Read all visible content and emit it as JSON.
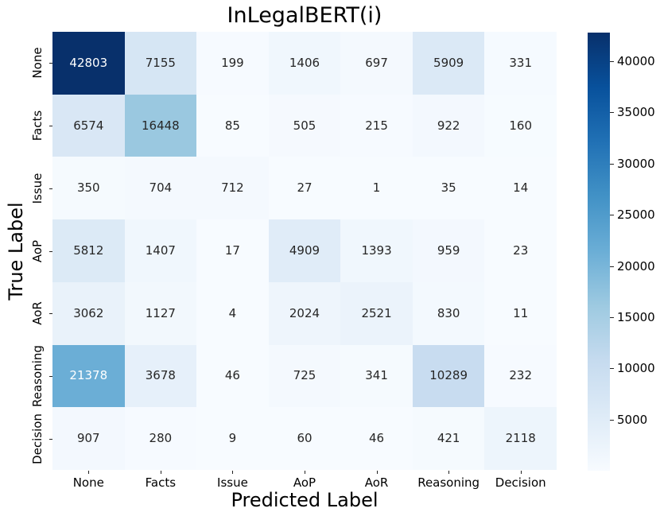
{
  "figure": {
    "title": "InLegalBERT(i)",
    "xlabel": "Predicted Label",
    "ylabel": "True Label"
  },
  "chart_data": {
    "type": "heatmap",
    "title": "InLegalBERT(i)",
    "xlabel": "Predicted Label",
    "ylabel": "True Label",
    "x_categories": [
      "None",
      "Facts",
      "Issue",
      "AoP",
      "AoR",
      "Reasoning",
      "Decision"
    ],
    "y_categories": [
      "None",
      "Facts",
      "Issue",
      "AoP",
      "AoR",
      "Reasoning",
      "Decision"
    ],
    "matrix": [
      [
        42803,
        7155,
        199,
        1406,
        697,
        5909,
        331
      ],
      [
        6574,
        16448,
        85,
        505,
        215,
        922,
        160
      ],
      [
        350,
        704,
        712,
        27,
        1,
        35,
        14
      ],
      [
        5812,
        1407,
        17,
        4909,
        1393,
        959,
        23
      ],
      [
        3062,
        1127,
        4,
        2024,
        2521,
        830,
        11
      ],
      [
        21378,
        3678,
        46,
        725,
        341,
        10289,
        232
      ],
      [
        907,
        280,
        9,
        60,
        46,
        421,
        2118
      ]
    ],
    "vmin": 1,
    "vmax": 42803,
    "colormap_name": "Blues",
    "colormap_anchors": [
      "#f7fbff",
      "#deebf7",
      "#c6dbef",
      "#9ecae1",
      "#6baed6",
      "#4292c6",
      "#2171b5",
      "#08519c",
      "#08306b"
    ],
    "annotation_dark_text_color": "#262626",
    "annotation_light_text_color": "#ffffff",
    "colorbar_ticks": [
      40000,
      35000,
      30000,
      25000,
      20000,
      15000,
      10000,
      5000
    ],
    "legend_position": "right-colorbar",
    "grid": false
  }
}
